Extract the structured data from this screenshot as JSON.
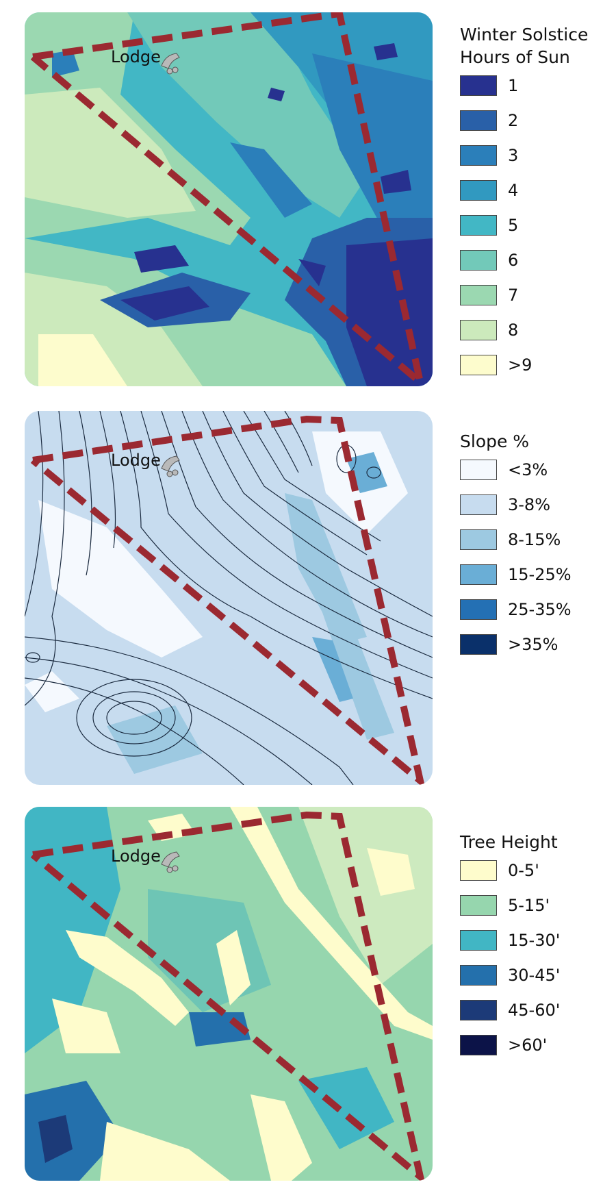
{
  "maps": [
    {
      "id": "sun",
      "place_label": "Lodge",
      "legend": {
        "title": "Winter Solstice\nHours of Sun",
        "items": [
          {
            "label": "1",
            "color": "#27318f"
          },
          {
            "label": "2",
            "color": "#2960a8"
          },
          {
            "label": "3",
            "color": "#2b7fba"
          },
          {
            "label": "4",
            "color": "#3199c0"
          },
          {
            "label": "5",
            "color": "#42b7c5"
          },
          {
            "label": "6",
            "color": "#72c9b9"
          },
          {
            "label": "7",
            "color": "#9bd8b1"
          },
          {
            "label": "8",
            "color": "#cceabc"
          },
          {
            "label": ">9",
            "color": "#fdfccd"
          }
        ]
      }
    },
    {
      "id": "slope",
      "place_label": "Lodge",
      "legend": {
        "title": "Slope %",
        "items": [
          {
            "label": "<3%",
            "color": "#f5f9fe"
          },
          {
            "label": "3-8%",
            "color": "#c7dcef"
          },
          {
            "label": "8-15%",
            "color": "#9dc9e1"
          },
          {
            "label": "15-25%",
            "color": "#6aaed6"
          },
          {
            "label": "25-35%",
            "color": "#2470b4"
          },
          {
            "label": ">35%",
            "color": "#0a306a"
          }
        ]
      }
    },
    {
      "id": "tree",
      "place_label": "Lodge",
      "legend": {
        "title": "Tree Height",
        "items": [
          {
            "label": "0-5'",
            "color": "#fefccc"
          },
          {
            "label": "5-15'",
            "color": "#96d6ae"
          },
          {
            "label": "15-30'",
            "color": "#41b6c4"
          },
          {
            "label": "30-45'",
            "color": "#2470ac"
          },
          {
            "label": "45-60'",
            "color": "#1c3a78"
          },
          {
            "label": ">60'",
            "color": "#0c1348"
          }
        ]
      }
    }
  ],
  "colors": {
    "boundary": "#9b2931",
    "contour": "#1a2a3f",
    "lodge_icon": "#b9b9b9"
  },
  "icons": {
    "lodge": "lodge-building-icon"
  }
}
